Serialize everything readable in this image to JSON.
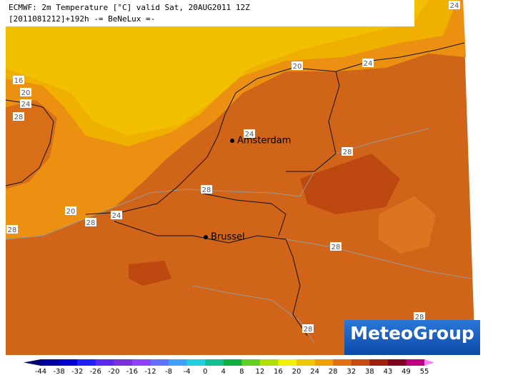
{
  "header": {
    "line1": "ECMWF: 2m Temperature [°C] valid Sat, 20AUG2011 12Z",
    "line2": "[2011081212]+192h -= BeNeLux =-"
  },
  "cities": [
    "Amsterdam",
    "Brussel"
  ],
  "contour_labels": [
    "24",
    "20",
    "24",
    "16",
    "20",
    "24",
    "28",
    "24",
    "28",
    "28",
    "20",
    "24",
    "28",
    "28",
    "28",
    "28",
    "28"
  ],
  "logo": "MeteoGroup",
  "legend": {
    "ticks": [
      -44,
      -38,
      -32,
      -26,
      -20,
      -16,
      -12,
      -8,
      -4,
      0,
      4,
      8,
      12,
      16,
      20,
      24,
      28,
      32,
      38,
      43,
      49,
      55
    ],
    "colors": [
      "#00006e",
      "#0000a0",
      "#0000d0",
      "#2020ff",
      "#5a28f0",
      "#7a30d8",
      "#9040ff",
      "#6070ff",
      "#40a0ff",
      "#20d0e0",
      "#10c090",
      "#10b040",
      "#60d020",
      "#b0e000",
      "#f0f000",
      "#f0c800",
      "#f0a000",
      "#e07010",
      "#c84a10",
      "#a02010",
      "#800020",
      "#c00080",
      "#ff80ff"
    ]
  }
}
